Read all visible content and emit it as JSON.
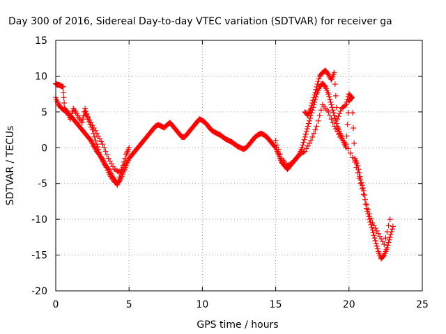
{
  "chart_data": {
    "type": "scatter",
    "title": "Day 300 of 2016, Sidereal Day-to-day VTEC variation (SDTVAR) for receiver ga",
    "xlabel": "GPS time / hours",
    "ylabel": "SDTVAR / TECUs",
    "xlim": [
      0,
      25
    ],
    "ylim": [
      -20,
      15
    ],
    "xticks": [
      0,
      5,
      10,
      15,
      20,
      25
    ],
    "yticks": [
      -20,
      -15,
      -10,
      -5,
      0,
      5,
      10,
      15
    ],
    "grid": true,
    "marker": "+",
    "color": "#ff0000",
    "series": [
      {
        "x": [
          0.0,
          0.2,
          0.4,
          0.6,
          0.8,
          1.0,
          1.2,
          1.4,
          1.6,
          1.8,
          2.0,
          2.2,
          2.4,
          2.6,
          2.8,
          3.0,
          3.2,
          3.4,
          3.6,
          3.8,
          4.0,
          4.2,
          4.4,
          4.6,
          4.8,
          5.0,
          5.2,
          5.4,
          5.6,
          5.8,
          6.0,
          6.2,
          6.4,
          6.6,
          6.8,
          7.0,
          7.2,
          7.4,
          7.6,
          7.8,
          8.0,
          8.2,
          8.4,
          8.6,
          8.8,
          9.0,
          9.2,
          9.4,
          9.6,
          9.8,
          10.0,
          10.2,
          10.4,
          10.6,
          10.8,
          11.0,
          11.2,
          11.4,
          11.6,
          11.8,
          12.0,
          12.2,
          12.4,
          12.6,
          12.8,
          13.0,
          13.2,
          13.4,
          13.6,
          13.8,
          14.0,
          14.2,
          14.4,
          14.6,
          14.8,
          15.0,
          15.2,
          15.4,
          15.6,
          15.8,
          16.0,
          16.2,
          16.4,
          16.6,
          16.8,
          17.0,
          17.2,
          17.4,
          17.6,
          17.8,
          18.0,
          18.2,
          18.4,
          18.6,
          18.8,
          19.0,
          19.2,
          19.4,
          19.6,
          19.8,
          20.0,
          20.2,
          20.4,
          20.6,
          20.8,
          21.0,
          21.2,
          21.4,
          21.6,
          21.8,
          22.0,
          22.2,
          22.4,
          22.6,
          22.8,
          23.0
        ],
        "y": [
          7.0,
          6.0,
          5.5,
          5.2,
          4.8,
          4.5,
          4.0,
          3.5,
          3.0,
          2.5,
          2.0,
          1.5,
          1.0,
          0.2,
          -0.5,
          -1.0,
          -1.8,
          -2.5,
          -3.0,
          -3.8,
          -4.5,
          -5.0,
          -4.5,
          -3.5,
          -2.5,
          -1.5,
          -1.0,
          -0.5,
          0.0,
          0.5,
          1.0,
          1.5,
          2.0,
          2.5,
          3.0,
          3.2,
          3.0,
          2.8,
          3.2,
          3.5,
          3.0,
          2.5,
          2.0,
          1.5,
          1.5,
          2.0,
          2.5,
          3.0,
          3.5,
          4.0,
          3.8,
          3.5,
          3.0,
          2.5,
          2.2,
          2.0,
          1.8,
          1.5,
          1.2,
          1.0,
          0.8,
          0.5,
          0.2,
          0.0,
          -0.2,
          0.0,
          0.5,
          1.0,
          1.5,
          1.8,
          2.0,
          1.8,
          1.5,
          1.0,
          0.5,
          0.0,
          -1.0,
          -2.0,
          -2.5,
          -3.0,
          -2.5,
          -2.0,
          -1.5,
          -1.0,
          0.0,
          1.5,
          3.0,
          4.5,
          6.0,
          7.5,
          8.5,
          9.0,
          8.5,
          7.5,
          6.0,
          4.5,
          3.0,
          2.0,
          1.0,
          0.0,
          6.5,
          7.0,
          -1.5,
          -2.5,
          -4.5,
          -6.0,
          -8.5,
          -10.0,
          -11.5,
          -13.0,
          -14.5,
          -15.5,
          -15.0,
          -14.0,
          -12.5,
          -11.0
        ]
      },
      {
        "x": [
          0.0,
          0.1,
          0.2,
          0.3,
          0.4,
          0.5,
          0.6,
          0.8,
          1.0,
          1.2,
          1.5,
          1.8,
          2.0,
          2.2,
          2.5,
          2.8,
          3.0,
          3.3,
          3.6,
          3.9,
          4.2,
          4.5,
          4.8,
          5.0,
          17.0,
          17.2,
          17.4,
          17.6,
          17.8,
          18.0,
          18.2,
          18.4,
          18.6,
          18.8,
          19.0,
          19.2,
          19.5,
          19.8,
          20.0,
          20.2
        ],
        "y": [
          9.0,
          8.8,
          8.8,
          8.7,
          8.6,
          8.5,
          5.5,
          5.0,
          4.0,
          5.5,
          4.5,
          3.5,
          5.5,
          4.0,
          2.5,
          0.5,
          -1.0,
          -2.0,
          -3.5,
          -4.5,
          -5.2,
          -3.0,
          -1.0,
          0.0,
          5.0,
          4.5,
          5.5,
          7.0,
          8.5,
          10.0,
          10.5,
          10.8,
          10.2,
          9.5,
          10.5,
          4.0,
          5.5,
          6.0,
          7.5,
          7.0
        ]
      },
      {
        "x": [
          2.0,
          2.4,
          2.8,
          3.2,
          3.6,
          4.0,
          4.4,
          4.8,
          15.0,
          15.4,
          15.8,
          16.2,
          16.6,
          17.0,
          17.4,
          17.8,
          18.2,
          18.6,
          19.0,
          19.4,
          19.8,
          20.4,
          20.8,
          21.2,
          21.6,
          22.0,
          22.4,
          22.8
        ],
        "y": [
          5.0,
          3.5,
          2.0,
          0.5,
          -1.5,
          -3.0,
          -3.5,
          -2.0,
          1.0,
          -1.5,
          -2.5,
          -2.0,
          -1.0,
          -0.5,
          1.0,
          3.0,
          6.0,
          5.0,
          3.0,
          1.5,
          0.5,
          -2.0,
          -5.0,
          -8.0,
          -10.5,
          -12.0,
          -13.5,
          -10.0
        ]
      }
    ]
  }
}
